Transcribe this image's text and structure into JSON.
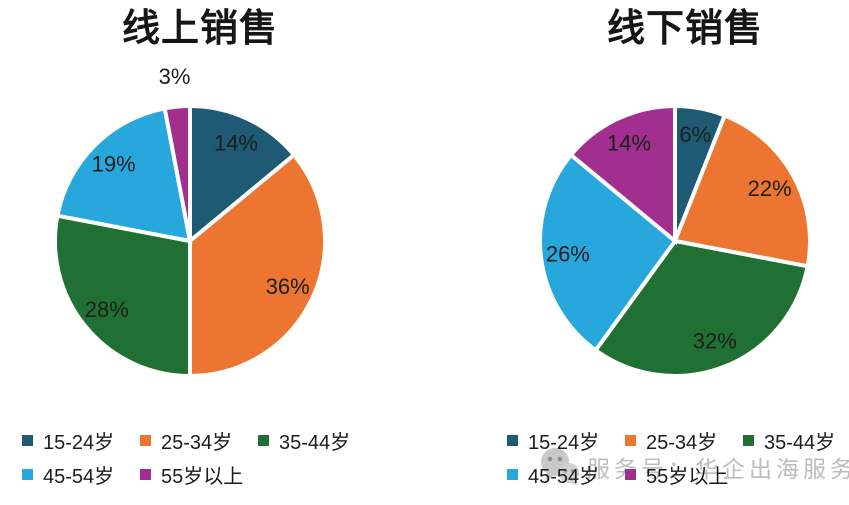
{
  "page": {
    "background": "#ffffff"
  },
  "watermark": {
    "icon": "wechat-logo-icon",
    "text": "服务号：华企出海服务",
    "color": "#bdbdbd"
  },
  "chart_data": [
    {
      "type": "pie",
      "title": "线上销售",
      "categories": [
        "15-24岁",
        "25-34岁",
        "35-44岁",
        "45-54岁",
        "55岁以上"
      ],
      "values": [
        14,
        36,
        28,
        19,
        3
      ],
      "labels": [
        "14%",
        "36%",
        "28%",
        "19%",
        "3%"
      ],
      "colors": [
        "#1E5A73",
        "#EB7531",
        "#1F7032",
        "#28A7DC",
        "#A02F90"
      ],
      "start_angle_deg": 0,
      "direction": "clockwise",
      "slice_border_color": "#ffffff",
      "label_color": "#1d1d1d",
      "small_slice_label_outside": true,
      "legend_position": "bottom",
      "legend_rows": 2
    },
    {
      "type": "pie",
      "title": "线下销售",
      "categories": [
        "15-24岁",
        "25-34岁",
        "35-44岁",
        "45-54岁",
        "55岁以上"
      ],
      "values": [
        6,
        22,
        32,
        26,
        14
      ],
      "labels": [
        "6%",
        "22%",
        "32%",
        "26%",
        "14%"
      ],
      "colors": [
        "#1E5A73",
        "#EB7531",
        "#1F7032",
        "#28A7DC",
        "#A02F90"
      ],
      "start_angle_deg": 0,
      "direction": "clockwise",
      "slice_border_color": "#ffffff",
      "label_color": "#1d1d1d",
      "small_slice_label_outside": true,
      "legend_position": "bottom",
      "legend_rows": 2
    }
  ]
}
